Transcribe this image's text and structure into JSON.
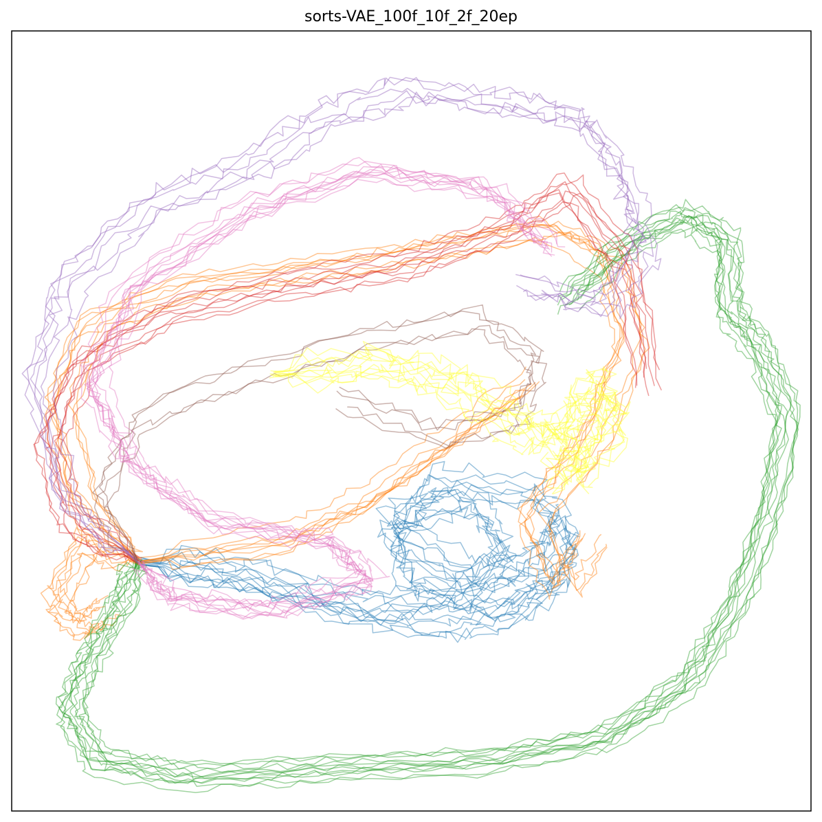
{
  "chart_data": {
    "type": "line",
    "title": "sorts-VAE_100f_10f_2f_20ep",
    "xlabel": "",
    "ylabel": "",
    "xlim": [
      -1.0,
      1.0
    ],
    "ylim": [
      -1.0,
      1.0
    ],
    "grid": false,
    "axes_ticks": false,
    "line_alpha": 0.45,
    "series": [
      {
        "color": "#1f77b4",
        "trajectories": 6,
        "noise": 0.035,
        "paths": [
          [
            [
              -0.68,
              -0.36
            ],
            [
              -0.45,
              -0.38
            ],
            [
              -0.2,
              -0.47
            ],
            [
              0.05,
              -0.52
            ],
            [
              0.22,
              -0.5
            ],
            [
              0.35,
              -0.42
            ],
            [
              0.4,
              -0.3
            ],
            [
              0.3,
              -0.18
            ],
            [
              0.05,
              -0.15
            ],
            [
              -0.05,
              -0.28
            ],
            [
              0.15,
              -0.4
            ],
            [
              0.3,
              -0.35
            ],
            [
              0.35,
              -0.25
            ]
          ],
          [
            [
              -0.68,
              -0.36
            ],
            [
              -0.4,
              -0.4
            ],
            [
              -0.1,
              -0.48
            ],
            [
              0.1,
              -0.45
            ],
            [
              0.25,
              -0.32
            ],
            [
              0.15,
              -0.2
            ],
            [
              -0.05,
              -0.25
            ],
            [
              0.0,
              -0.4
            ],
            [
              0.2,
              -0.47
            ],
            [
              0.38,
              -0.38
            ]
          ]
        ]
      },
      {
        "color": "#ff7f0e",
        "trajectories": 8,
        "noise": 0.02,
        "paths": [
          [
            [
              -0.68,
              -0.36
            ],
            [
              -0.82,
              -0.2
            ],
            [
              -0.88,
              0.05
            ],
            [
              -0.8,
              0.25
            ],
            [
              -0.55,
              0.35
            ],
            [
              -0.2,
              0.4
            ],
            [
              0.1,
              0.45
            ],
            [
              0.35,
              0.5
            ],
            [
              0.5,
              0.42
            ],
            [
              0.55,
              0.2
            ],
            [
              0.45,
              -0.05
            ],
            [
              0.3,
              -0.25
            ],
            [
              0.38,
              -0.42
            ],
            [
              0.45,
              -0.3
            ]
          ],
          [
            [
              -0.68,
              -0.36
            ],
            [
              -0.8,
              -0.3
            ],
            [
              -0.88,
              -0.45
            ],
            [
              -0.82,
              -0.52
            ],
            [
              -0.75,
              -0.48
            ]
          ],
          [
            [
              -0.68,
              -0.36
            ],
            [
              -0.3,
              -0.3
            ],
            [
              -0.1,
              -0.2
            ],
            [
              0.1,
              -0.05
            ],
            [
              0.3,
              0.1
            ]
          ]
        ]
      },
      {
        "color": "#2ca02c",
        "trajectories": 12,
        "noise": 0.02,
        "paths": [
          [
            [
              -0.68,
              -0.36
            ],
            [
              -0.72,
              -0.48
            ],
            [
              -0.8,
              -0.62
            ],
            [
              -0.85,
              -0.75
            ],
            [
              -0.78,
              -0.88
            ],
            [
              -0.55,
              -0.92
            ],
            [
              -0.2,
              -0.9
            ],
            [
              0.2,
              -0.88
            ],
            [
              0.5,
              -0.82
            ],
            [
              0.7,
              -0.68
            ],
            [
              0.82,
              -0.48
            ],
            [
              0.9,
              -0.25
            ],
            [
              0.95,
              0.0
            ],
            [
              0.88,
              0.18
            ],
            [
              0.8,
              0.28
            ],
            [
              0.8,
              0.45
            ],
            [
              0.7,
              0.52
            ],
            [
              0.55,
              0.45
            ],
            [
              0.4,
              0.3
            ]
          ]
        ]
      },
      {
        "color": "#d62728",
        "trajectories": 8,
        "noise": 0.02,
        "paths": [
          [
            [
              -0.68,
              -0.36
            ],
            [
              -0.85,
              -0.25
            ],
            [
              -0.9,
              -0.05
            ],
            [
              -0.82,
              0.15
            ],
            [
              -0.6,
              0.28
            ],
            [
              -0.3,
              0.35
            ],
            [
              0.0,
              0.4
            ],
            [
              0.25,
              0.5
            ],
            [
              0.4,
              0.6
            ],
            [
              0.55,
              0.4
            ],
            [
              0.6,
              0.1
            ]
          ]
        ]
      },
      {
        "color": "#9467bd",
        "trajectories": 6,
        "noise": 0.035,
        "paths": [
          [
            [
              -0.68,
              -0.36
            ],
            [
              -0.85,
              -0.2
            ],
            [
              -0.92,
              0.1
            ],
            [
              -0.85,
              0.35
            ],
            [
              -0.65,
              0.55
            ],
            [
              -0.4,
              0.65
            ],
            [
              -0.2,
              0.78
            ],
            [
              0.0,
              0.85
            ],
            [
              0.25,
              0.82
            ],
            [
              0.45,
              0.78
            ],
            [
              0.55,
              0.62
            ],
            [
              0.6,
              0.45
            ],
            [
              0.5,
              0.3
            ],
            [
              0.3,
              0.35
            ]
          ]
        ]
      },
      {
        "color": "#8c564b",
        "trajectories": 4,
        "noise": 0.025,
        "paths": [
          [
            [
              -0.68,
              -0.36
            ],
            [
              -0.75,
              -0.2
            ],
            [
              -0.65,
              0.0
            ],
            [
              -0.4,
              0.1
            ],
            [
              -0.1,
              0.2
            ],
            [
              0.2,
              0.25
            ],
            [
              0.35,
              0.15
            ],
            [
              0.3,
              0.0
            ],
            [
              0.1,
              -0.05
            ],
            [
              -0.15,
              0.05
            ]
          ]
        ]
      },
      {
        "color": "#e377c2",
        "trajectories": 10,
        "noise": 0.03,
        "paths": [
          [
            [
              -0.68,
              -0.36
            ],
            [
              -0.6,
              -0.45
            ],
            [
              -0.35,
              -0.48
            ],
            [
              -0.1,
              -0.4
            ],
            [
              -0.2,
              -0.3
            ],
            [
              -0.5,
              -0.25
            ],
            [
              -0.7,
              -0.1
            ],
            [
              -0.8,
              0.1
            ],
            [
              -0.7,
              0.35
            ],
            [
              -0.4,
              0.55
            ],
            [
              -0.1,
              0.65
            ],
            [
              0.2,
              0.6
            ],
            [
              0.35,
              0.45
            ]
          ]
        ]
      },
      {
        "color": "#ffff33",
        "trajectories": 10,
        "noise": 0.045,
        "paths": [
          [
            [
              -0.35,
              0.12
            ],
            [
              -0.1,
              0.15
            ],
            [
              0.1,
              0.1
            ],
            [
              0.25,
              0.0
            ],
            [
              0.35,
              -0.05
            ],
            [
              0.45,
              0.1
            ],
            [
              0.5,
              0.0
            ],
            [
              0.4,
              -0.15
            ],
            [
              0.38,
              -0.05
            ]
          ]
        ]
      }
    ]
  }
}
